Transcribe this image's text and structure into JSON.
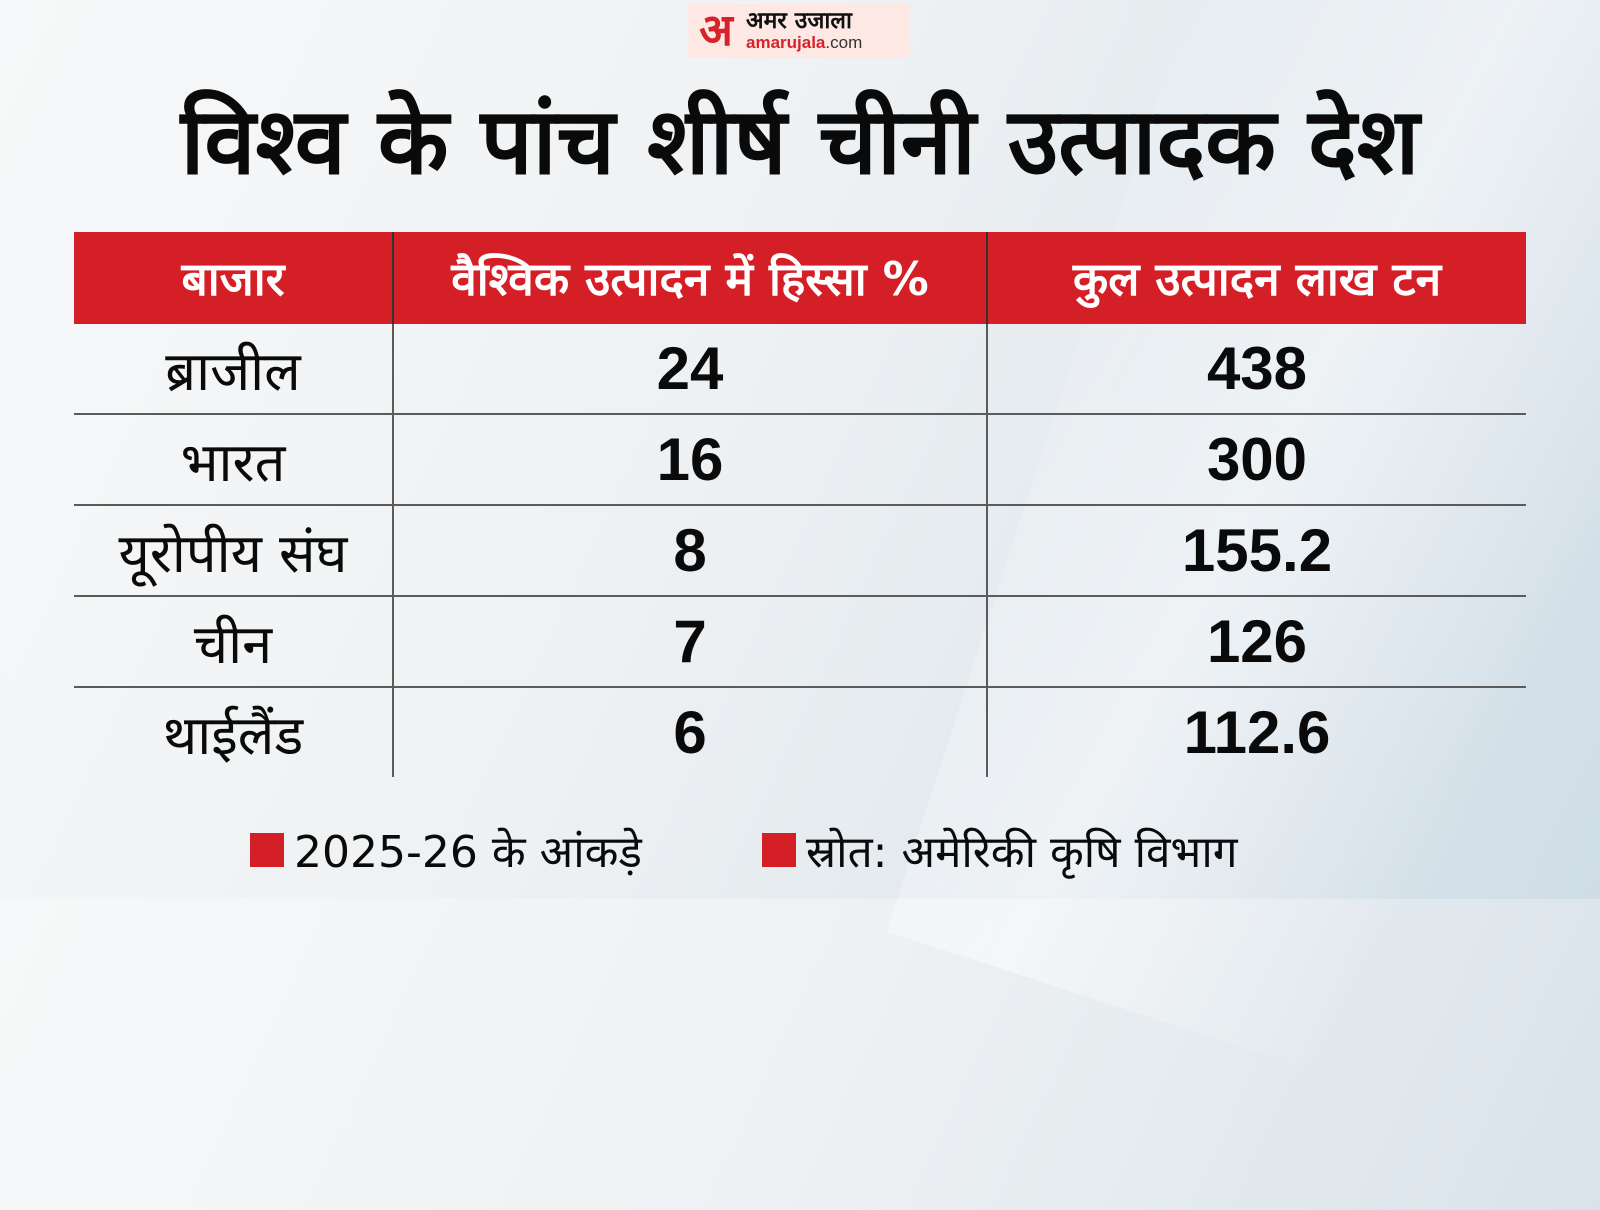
{
  "brand": {
    "logo_mark": "अ",
    "logo_hindi": "अमर उजाला",
    "logo_url_main": "amarujala",
    "logo_url_suffix": ".com",
    "accent_color": "#d41f27"
  },
  "title": "विश्व के पांच शीर्ष चीनी उत्पादक देश",
  "chart_data": {
    "type": "table",
    "columns": [
      "बाजार",
      "वैश्विक उत्पादन में हिस्सा %",
      "कुल उत्पादन लाख टन"
    ],
    "rows": [
      {
        "market": "ब्राजील",
        "share": "24",
        "production": "438"
      },
      {
        "market": "भारत",
        "share": "16",
        "production": "300"
      },
      {
        "market": "यूरोपीय संघ",
        "share": "8",
        "production": "155.2"
      },
      {
        "market": "चीन",
        "share": "7",
        "production": "126"
      },
      {
        "market": "थाईलैंड",
        "share": "6",
        "production": "112.6"
      }
    ]
  },
  "footer": {
    "note": "2025-26 के आंकड़े",
    "source": "स्रोत: अमेरिकी कृषि विभाग"
  }
}
